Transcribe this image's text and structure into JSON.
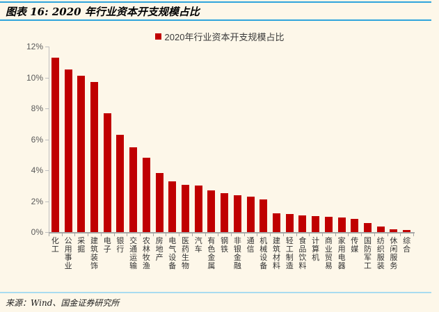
{
  "header": {
    "title": "图表 16: 2020 年行业资本开支规模占比"
  },
  "footer": {
    "source": "来源：Wind、国金证券研究所"
  },
  "colors": {
    "bar": "#c00000",
    "accent_line": "#2ea4dc",
    "divider_line": "#a9dcf0",
    "background": "#fdf7e9",
    "axis_line": "#bfbfbf",
    "x_axis_line": "#a6a6a6",
    "y_label_text": "#595959",
    "x_label_text": "#333333"
  },
  "chart_data": {
    "type": "bar",
    "title": "2020年行业资本开支规模占比",
    "legend_label": "2020年行业资本开支规模占比",
    "legend_position": "top",
    "grid": false,
    "xlabel": "",
    "ylabel": "",
    "yunit": "%",
    "ylim": [
      0,
      12
    ],
    "ytick_step": 2,
    "ytick_labels": [
      "0%",
      "2%",
      "4%",
      "6%",
      "8%",
      "10%",
      "12%"
    ],
    "categories": [
      "化工",
      "公用事业",
      "采掘",
      "建筑装饰",
      "电子",
      "银行",
      "交通运输",
      "农林牧渔",
      "房地产",
      "电气设备",
      "医药生物",
      "汽车",
      "有色金属",
      "钢铁",
      "非银金融",
      "通信",
      "机械设备",
      "建筑材料",
      "轻工制造",
      "食品饮料",
      "计算机",
      "商业贸易",
      "家用电器",
      "传媒",
      "国防军工",
      "纺织服装",
      "休闲服务",
      "综合"
    ],
    "series": [
      {
        "name": "2020年行业资本开支规模占比",
        "values": [
          11.3,
          10.5,
          10.1,
          9.7,
          7.7,
          6.3,
          5.5,
          4.8,
          3.8,
          3.3,
          3.05,
          3.0,
          2.7,
          2.5,
          2.4,
          2.3,
          2.1,
          1.2,
          1.15,
          1.1,
          1.05,
          1.0,
          0.95,
          0.85,
          0.6,
          0.35,
          0.2,
          0.15
        ]
      }
    ]
  }
}
